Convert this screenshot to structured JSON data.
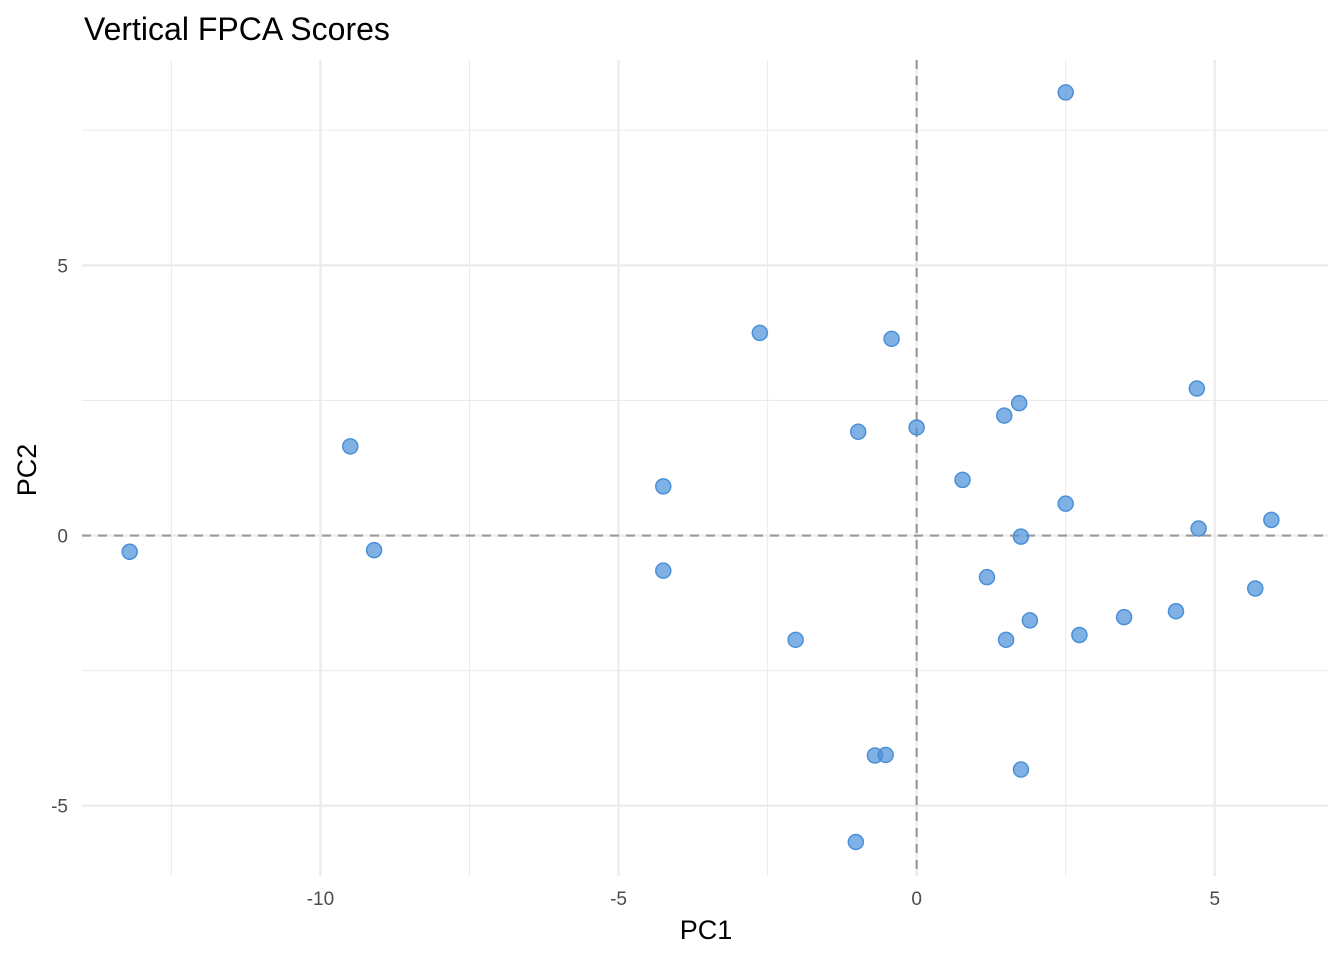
{
  "chart_data": {
    "type": "scatter",
    "title": "Vertical FPCA Scores",
    "xlabel": "PC1",
    "ylabel": "PC2",
    "xlim": [
      -14.0,
      6.9
    ],
    "ylim": [
      -6.3,
      8.8
    ],
    "x_major_ticks": [
      -10,
      -5,
      0,
      5
    ],
    "x_major_tick_labels": [
      "-10",
      "-5",
      "0",
      "5"
    ],
    "x_minor_ticks": [
      -12.5,
      -7.5,
      -2.5,
      2.5
    ],
    "y_major_ticks": [
      -5,
      0,
      5
    ],
    "y_major_tick_labels": [
      "-5",
      "0",
      "5"
    ],
    "y_minor_ticks": [
      -2.5,
      2.5,
      7.5
    ],
    "reference_lines": {
      "x": 0,
      "y": 0,
      "style": "dashed"
    },
    "grid": true,
    "point_color": "#4a90d9",
    "points": [
      {
        "x": 2.5,
        "y": 8.2
      },
      {
        "x": -2.63,
        "y": 3.75
      },
      {
        "x": -0.42,
        "y": 3.64
      },
      {
        "x": 4.7,
        "y": 2.72
      },
      {
        "x": 1.72,
        "y": 2.45
      },
      {
        "x": 1.47,
        "y": 2.22
      },
      {
        "x": -0.98,
        "y": 1.92
      },
      {
        "x": 0.0,
        "y": 2.0
      },
      {
        "x": -9.5,
        "y": 1.65
      },
      {
        "x": 0.77,
        "y": 1.03
      },
      {
        "x": -4.25,
        "y": 0.91
      },
      {
        "x": 2.5,
        "y": 0.59
      },
      {
        "x": 4.73,
        "y": 0.13
      },
      {
        "x": 5.95,
        "y": 0.29
      },
      {
        "x": 1.75,
        "y": -0.02
      },
      {
        "x": -13.2,
        "y": -0.3
      },
      {
        "x": -9.1,
        "y": -0.27
      },
      {
        "x": -4.25,
        "y": -0.65
      },
      {
        "x": 1.18,
        "y": -0.77
      },
      {
        "x": 5.68,
        "y": -0.98
      },
      {
        "x": 4.35,
        "y": -1.4
      },
      {
        "x": 3.48,
        "y": -1.51
      },
      {
        "x": 1.9,
        "y": -1.57
      },
      {
        "x": 2.73,
        "y": -1.84
      },
      {
        "x": 1.5,
        "y": -1.93
      },
      {
        "x": -2.03,
        "y": -1.93
      },
      {
        "x": -0.52,
        "y": -4.06
      },
      {
        "x": -0.7,
        "y": -4.07
      },
      {
        "x": 1.75,
        "y": -4.33
      },
      {
        "x": -1.02,
        "y": -5.67
      }
    ]
  }
}
